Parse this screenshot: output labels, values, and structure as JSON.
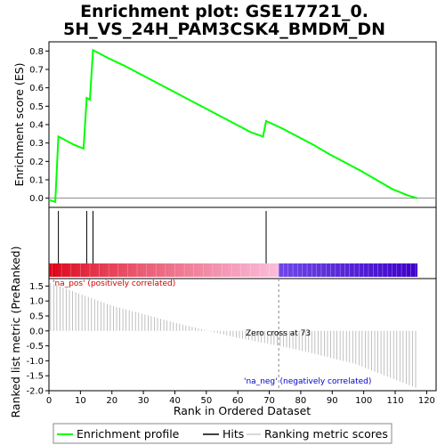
{
  "title_line1": "Enrichment plot: GSE17721_0.",
  "title_line2": "5H_VS_24H_PAM3CSK4_BMDM_DN",
  "colors": {
    "es_curve": "#00ff00",
    "hits": "#000000",
    "metric": "#b0b0b0",
    "pos_label": "#cc0000",
    "neg_label": "#0000cc"
  },
  "chart_data": [
    {
      "type": "line",
      "name": "enrichment-profile",
      "ylabel": "Enrichment score (ES)",
      "xlim": [
        0,
        123
      ],
      "ylim": [
        -0.05,
        0.85
      ],
      "yticks": [
        "0.0",
        "0.1",
        "0.2",
        "0.3",
        "0.4",
        "0.5",
        "0.6",
        "0.7",
        "0.8"
      ],
      "grid": false,
      "x": [
        0,
        2,
        3,
        8,
        11,
        12,
        13,
        14,
        19,
        24,
        29,
        34,
        39,
        44,
        49,
        54,
        59,
        64,
        68,
        69,
        74,
        79,
        84,
        89,
        94,
        99,
        104,
        109,
        114,
        117
      ],
      "y": [
        -0.01,
        -0.02,
        0.335,
        0.29,
        0.27,
        0.545,
        0.535,
        0.805,
        0.76,
        0.72,
        0.675,
        0.63,
        0.585,
        0.54,
        0.495,
        0.45,
        0.405,
        0.36,
        0.335,
        0.42,
        0.38,
        0.335,
        0.29,
        0.24,
        0.195,
        0.15,
        0.1,
        0.05,
        0.015,
        0.0
      ]
    },
    {
      "type": "bar",
      "name": "hits",
      "hit_positions": [
        3,
        12,
        14,
        69
      ]
    },
    {
      "type": "bar",
      "name": "ranked-list-metric",
      "ylabel": "Ranked list metric (PreRanked)",
      "xlabel": "Rank in Ordered Dataset",
      "xlim": [
        0,
        123
      ],
      "ylim": [
        -2.0,
        1.75
      ],
      "xticks": [
        "0",
        "10",
        "20",
        "30",
        "40",
        "50",
        "60",
        "70",
        "80",
        "90",
        "100",
        "110",
        "120"
      ],
      "yticks": [
        "1.5",
        "1.0",
        "0.5",
        "0.0",
        "-0.5",
        "-1.0",
        "-1.5",
        "-2.0"
      ],
      "zero_cross": 73,
      "n": 117,
      "endpoints": [
        1.6,
        0.85,
        0.3,
        -0.2,
        -0.6,
        -1.1,
        -1.9
      ],
      "annotations": {
        "pos": "'na_pos' (positively correlated)",
        "neg": "'na_neg' (negatively correlated)",
        "zero": "Zero cross at 73"
      }
    }
  ],
  "legend": {
    "items": [
      {
        "label": "Enrichment profile",
        "color": "#00ff00"
      },
      {
        "label": "Hits",
        "color": "#000000"
      },
      {
        "label": "Ranking metric scores",
        "color": "#b0b0b0"
      }
    ]
  }
}
